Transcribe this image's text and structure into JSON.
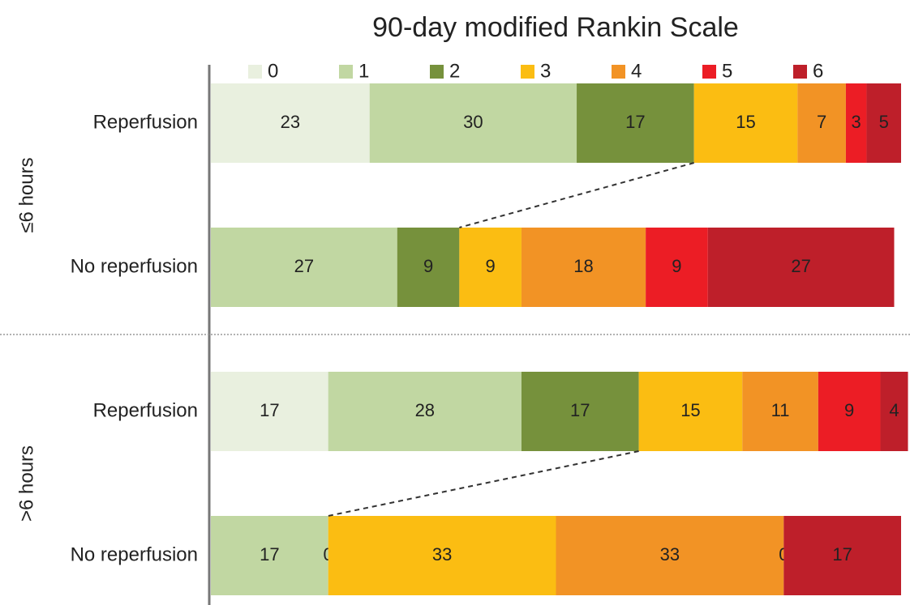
{
  "chart_data": {
    "type": "bar",
    "orientation": "horizontal",
    "stacked": true,
    "title": "90-day modified Rankin Scale",
    "groups": [
      "≤6 hours",
      ">6 hours"
    ],
    "categories": [
      "Reperfusion",
      "No reperfusion",
      "Reperfusion",
      "No reperfusion"
    ],
    "xlim": [
      0,
      100
    ],
    "series": [
      {
        "name": "0",
        "color": "#e9f0df",
        "values": [
          23,
          null,
          17,
          null
        ]
      },
      {
        "name": "1",
        "color": "#c1d7a2",
        "values": [
          30,
          27,
          28,
          17
        ]
      },
      {
        "name": "2",
        "color": "#76913c",
        "values": [
          17,
          9,
          17,
          0
        ]
      },
      {
        "name": "3",
        "color": "#fbbd12",
        "values": [
          15,
          9,
          15,
          33
        ]
      },
      {
        "name": "4",
        "color": "#f29325",
        "values": [
          7,
          18,
          11,
          33
        ]
      },
      {
        "name": "5",
        "color": "#ec1d25",
        "values": [
          3,
          9,
          9,
          0
        ]
      },
      {
        "name": "6",
        "color": "#be1f2a",
        "values": [
          5,
          27,
          4,
          17
        ]
      }
    ]
  }
}
